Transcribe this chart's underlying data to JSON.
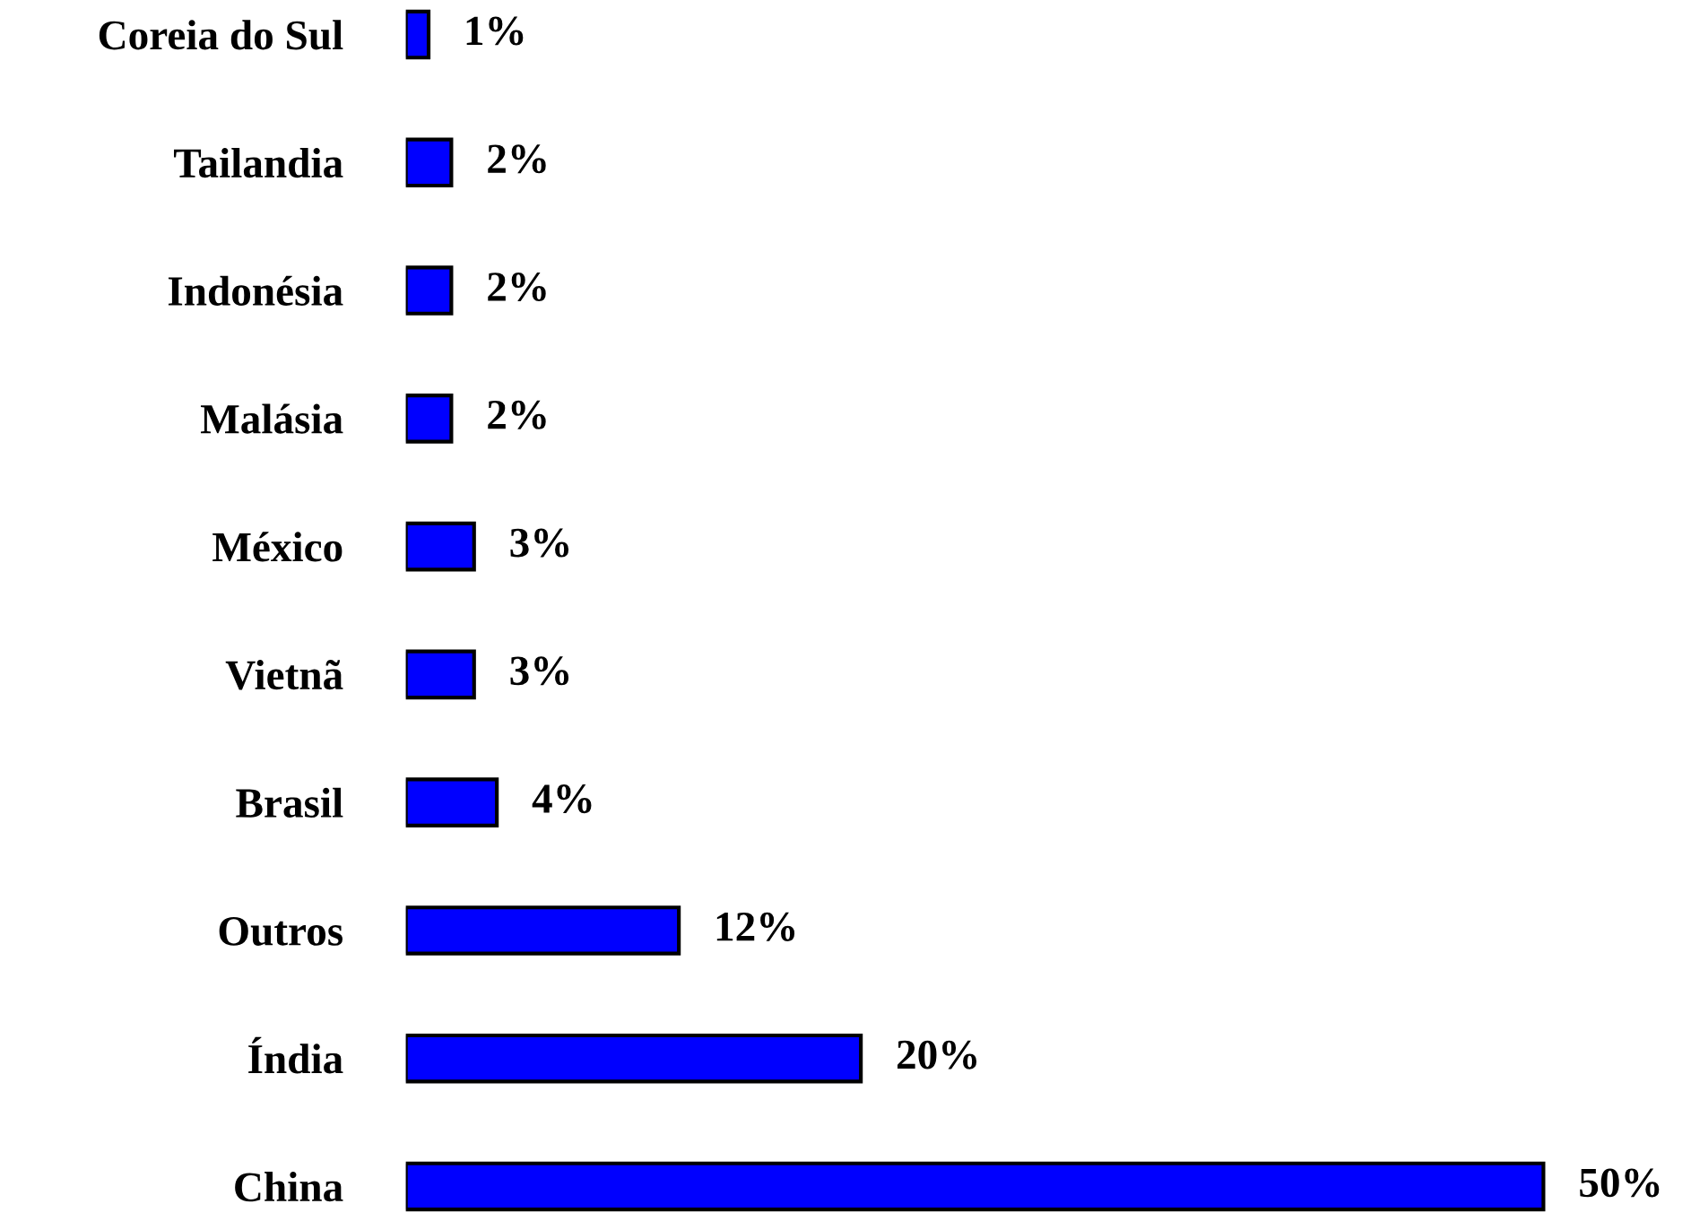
{
  "chart_data": {
    "type": "bar",
    "orientation": "horizontal",
    "categories": [
      "Coreia do Sul",
      "Tailandia",
      "Indonésia",
      "Malásia",
      "México",
      "Vietnã",
      "Brasil",
      "Outros",
      "Índia",
      "China"
    ],
    "values": [
      1,
      2,
      2,
      2,
      3,
      3,
      4,
      12,
      20,
      50
    ],
    "value_labels": [
      "1%",
      "2%",
      "2%",
      "2%",
      "3%",
      "3%",
      "4%",
      "12%",
      "20%",
      "50%"
    ],
    "color": "#0000ff"
  }
}
